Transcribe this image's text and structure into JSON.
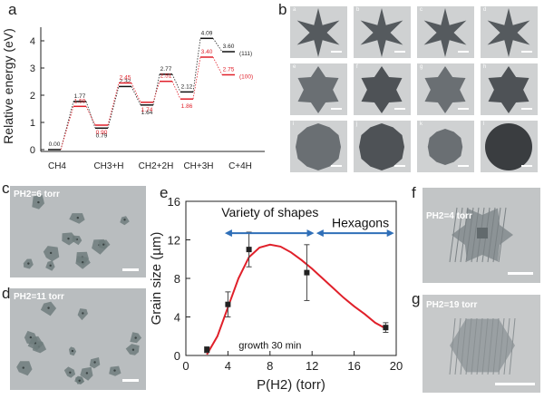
{
  "panels": {
    "a": "a",
    "b": "b",
    "c": "c",
    "d": "d",
    "e": "e",
    "f": "f",
    "g": "g"
  },
  "panel_a": {
    "ylabel": "Relative energy (eV)",
    "yticks": [
      "0",
      "1",
      "2",
      "3",
      "4"
    ],
    "xticks": [
      "CH4",
      "CH3+H",
      "CH2+2H",
      "CH+3H",
      "C+4H"
    ],
    "legend": [
      "(111)",
      "(100)"
    ],
    "black_values": [
      "0.00",
      "1.77",
      "0.79",
      "2.32",
      "1.64",
      "2.77",
      "2.12",
      "4.09",
      "3.60"
    ],
    "red_values": [
      "1.59",
      "0.90",
      "2.45",
      "1.74",
      "2.51",
      "1.86",
      "3.40",
      "2.75"
    ],
    "colors": {
      "series111": "#111111",
      "series100": "#e0202a"
    }
  },
  "panel_b": {
    "tile_labels": [
      "a",
      "b",
      "c",
      "d",
      "e",
      "f",
      "g",
      "h",
      "i",
      "j",
      "k",
      "l"
    ]
  },
  "panel_c": {
    "pressure": "PH2=6 torr"
  },
  "panel_d": {
    "pressure": "PH2=11 torr"
  },
  "panel_f": {
    "pressure": "PH2=4 torr"
  },
  "panel_g": {
    "pressure": "PH2=19 torr"
  },
  "chart_data": {
    "type": "scatter",
    "title": "",
    "xlabel": "P(H2) (torr)",
    "ylabel": "Grain size (µm)",
    "xlim": [
      0,
      20
    ],
    "ylim": [
      0,
      16
    ],
    "xticks": [
      0,
      4,
      8,
      12,
      16,
      20
    ],
    "yticks": [
      0,
      4,
      8,
      12,
      16
    ],
    "points": [
      {
        "x": 2,
        "y": 0.6,
        "err": 0.3
      },
      {
        "x": 4,
        "y": 5.3,
        "err": 1.3
      },
      {
        "x": 6,
        "y": 11.0,
        "err": 1.8
      },
      {
        "x": 11.5,
        "y": 8.6,
        "err": 2.9
      },
      {
        "x": 19,
        "y": 2.9,
        "err": 0.5
      }
    ],
    "fit_curve": [
      [
        2,
        0.1
      ],
      [
        3,
        2.0
      ],
      [
        4,
        5.0
      ],
      [
        5,
        8.0
      ],
      [
        6,
        10.2
      ],
      [
        7,
        11.2
      ],
      [
        8,
        11.5
      ],
      [
        9,
        11.3
      ],
      [
        10,
        10.7
      ],
      [
        11,
        9.9
      ],
      [
        12,
        9.0
      ],
      [
        13,
        8.0
      ],
      [
        14,
        7.0
      ],
      [
        15,
        6.0
      ],
      [
        16,
        5.1
      ],
      [
        17,
        4.3
      ],
      [
        18,
        3.4
      ],
      [
        19,
        2.8
      ]
    ],
    "annotations": {
      "variety": "Variety of shapes",
      "hexagons": "Hexagons",
      "growth": "growth 30 min"
    },
    "colors": {
      "curve": "#e0202a",
      "arrow": "#2f6fb8",
      "points": "#222222"
    }
  }
}
